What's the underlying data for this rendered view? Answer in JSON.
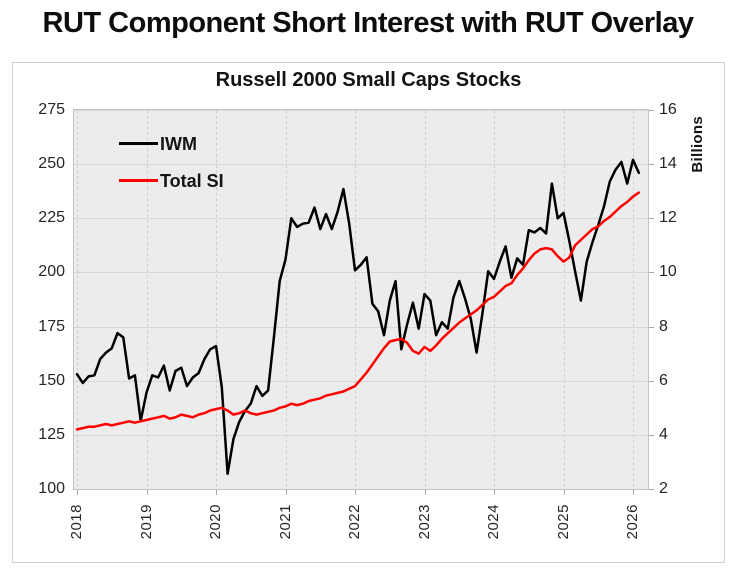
{
  "main_title": "RUT Component Short Interest with RUT Overlay",
  "chart_data": {
    "type": "line",
    "title": "Russell 2000 Small Caps Stocks",
    "grid": true,
    "legend_position": "top-left-inside",
    "x_axis": {
      "tick_labels": [
        "2018",
        "2019",
        "2020",
        "2021",
        "2022",
        "2023",
        "2024",
        "2025",
        "2026"
      ],
      "tick_years": [
        2018,
        2019,
        2020,
        2021,
        2022,
        2023,
        2024,
        2025,
        2026
      ]
    },
    "left_axis": {
      "min": 100,
      "max": 275,
      "ticks": [
        275,
        250,
        225,
        200,
        175,
        150,
        125,
        100
      ]
    },
    "right_axis": {
      "min": 2,
      "max": 16,
      "ticks": [
        16,
        14,
        12,
        10,
        8,
        6,
        4,
        2
      ],
      "label": "Billions"
    },
    "x_unit": "month",
    "x": [
      "2018-01",
      "2018-02",
      "2018-03",
      "2018-04",
      "2018-05",
      "2018-06",
      "2018-07",
      "2018-08",
      "2018-09",
      "2018-10",
      "2018-11",
      "2018-12",
      "2019-01",
      "2019-02",
      "2019-03",
      "2019-04",
      "2019-05",
      "2019-06",
      "2019-07",
      "2019-08",
      "2019-09",
      "2019-10",
      "2019-11",
      "2019-12",
      "2020-01",
      "2020-02",
      "2020-03",
      "2020-04",
      "2020-05",
      "2020-06",
      "2020-07",
      "2020-08",
      "2020-09",
      "2020-10",
      "2020-11",
      "2020-12",
      "2021-01",
      "2021-02",
      "2021-03",
      "2021-04",
      "2021-05",
      "2021-06",
      "2021-07",
      "2021-08",
      "2021-09",
      "2021-10",
      "2021-11",
      "2021-12",
      "2022-01",
      "2022-02",
      "2022-03",
      "2022-04",
      "2022-05",
      "2022-06",
      "2022-07",
      "2022-08",
      "2022-09",
      "2022-10",
      "2022-11",
      "2022-12",
      "2023-01",
      "2023-02",
      "2023-03",
      "2023-04",
      "2023-05",
      "2023-06",
      "2023-07",
      "2023-08",
      "2023-09",
      "2023-10",
      "2023-11",
      "2023-12",
      "2024-01",
      "2024-02",
      "2024-03",
      "2024-04",
      "2024-05",
      "2024-06",
      "2024-07",
      "2024-08",
      "2024-09",
      "2024-10",
      "2024-11",
      "2024-12",
      "2025-01",
      "2025-02",
      "2025-03",
      "2025-04",
      "2025-05",
      "2025-06",
      "2025-07",
      "2025-08",
      "2025-09",
      "2025-10",
      "2025-11",
      "2025-12",
      "2026-01",
      "2026-02"
    ],
    "series": [
      {
        "name": "IWM",
        "axis": "left",
        "color": "#000000",
        "values": [
          153,
          149,
          152,
          152.5,
          160,
          163,
          165,
          172,
          170,
          151,
          152.5,
          131.5,
          144.5,
          152.5,
          151.5,
          157,
          145.5,
          154.5,
          156,
          147.5,
          151.5,
          153.5,
          160,
          164.5,
          166,
          147,
          107,
          123,
          131,
          136,
          139.5,
          147.5,
          143,
          145.5,
          170,
          196,
          206,
          225,
          221,
          222.5,
          223,
          230,
          220,
          227,
          220,
          228,
          238.5,
          222.5,
          201,
          203.5,
          207,
          185.5,
          182,
          171,
          187,
          196,
          164.5,
          176,
          186,
          174,
          190,
          187,
          171,
          177,
          174,
          188.5,
          196,
          188,
          178.5,
          163,
          181,
          200.5,
          197,
          205,
          212,
          197.5,
          206.5,
          203.5,
          219.5,
          218.5,
          220.5,
          218,
          241,
          225,
          227.5,
          214.5,
          200.5,
          187,
          205,
          214,
          222,
          230.5,
          242,
          247.5,
          251,
          241,
          252,
          246
        ]
      },
      {
        "name": "Total SI",
        "axis": "right",
        "color": "#ff0000",
        "values": [
          4.2,
          4.25,
          4.3,
          4.3,
          4.35,
          4.4,
          4.35,
          4.4,
          4.45,
          4.5,
          4.45,
          4.5,
          4.55,
          4.6,
          4.65,
          4.7,
          4.6,
          4.65,
          4.75,
          4.7,
          4.65,
          4.75,
          4.8,
          4.9,
          4.95,
          5.0,
          4.9,
          4.75,
          4.8,
          4.9,
          4.8,
          4.75,
          4.8,
          4.85,
          4.9,
          5.0,
          5.05,
          5.15,
          5.1,
          5.15,
          5.25,
          5.3,
          5.35,
          5.45,
          5.5,
          5.55,
          5.6,
          5.7,
          5.8,
          6.05,
          6.3,
          6.6,
          6.9,
          7.2,
          7.45,
          7.5,
          7.55,
          7.4,
          7.1,
          7.0,
          7.25,
          7.1,
          7.3,
          7.55,
          7.75,
          7.95,
          8.15,
          8.3,
          8.45,
          8.6,
          8.8,
          9.0,
          9.1,
          9.3,
          9.5,
          9.6,
          9.9,
          10.15,
          10.45,
          10.7,
          10.85,
          10.9,
          10.85,
          10.6,
          10.4,
          10.55,
          11.0,
          11.2,
          11.4,
          11.6,
          11.7,
          11.9,
          12.05,
          12.25,
          12.45,
          12.6,
          12.8,
          12.95
        ]
      }
    ]
  },
  "colors": {
    "plot_background": "#ececec",
    "gridline": "#d7d7d7",
    "gridline_dashed": "#cfcfcf",
    "panel_border": "#cfcfcf"
  }
}
